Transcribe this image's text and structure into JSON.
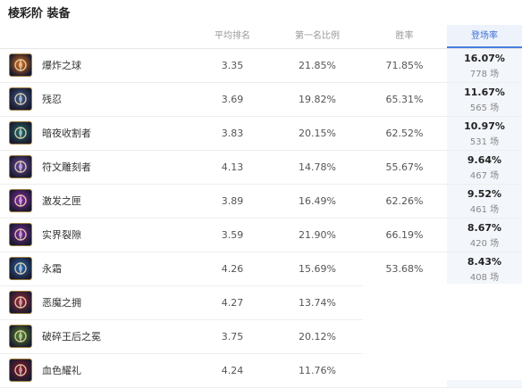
{
  "title": "棱彩阶 装备",
  "columns": {
    "avg_rank": "平均排名",
    "first_rate": "第一名比例",
    "win_rate": "胜率",
    "pick_rate": "登场率"
  },
  "rows": [
    {
      "name": "爆炸之球",
      "avg_rank": "3.35",
      "first_rate": "21.85%",
      "win_rate": "71.85%",
      "pick_rate": "16.07%",
      "count": "778 场",
      "icon": "explosive-orb-icon",
      "color": "#d9731c"
    },
    {
      "name": "残忍",
      "avg_rank": "3.69",
      "first_rate": "19.82%",
      "win_rate": "65.31%",
      "pick_rate": "11.67%",
      "count": "565 场",
      "icon": "cruelty-icon",
      "color": "#3c5a8a"
    },
    {
      "name": "暗夜收割者",
      "avg_rank": "3.83",
      "first_rate": "20.15%",
      "win_rate": "62.52%",
      "pick_rate": "10.97%",
      "count": "531 场",
      "icon": "night-harvester-icon",
      "color": "#1f6a6a"
    },
    {
      "name": "符文雕刻者",
      "avg_rank": "4.13",
      "first_rate": "14.78%",
      "win_rate": "55.67%",
      "pick_rate": "9.64%",
      "count": "467 场",
      "icon": "rune-carver-icon",
      "color": "#6c4aa0"
    },
    {
      "name": "激发之匣",
      "avg_rank": "3.89",
      "first_rate": "16.49%",
      "win_rate": "62.26%",
      "pick_rate": "9.52%",
      "count": "461 场",
      "icon": "catalyst-box-icon",
      "color": "#8a2aa8"
    },
    {
      "name": "实界裂隙",
      "avg_rank": "3.59",
      "first_rate": "21.90%",
      "win_rate": "66.19%",
      "pick_rate": "8.67%",
      "count": "420 场",
      "icon": "reality-rift-icon",
      "color": "#7a2a9a"
    },
    {
      "name": "永霜",
      "avg_rank": "4.26",
      "first_rate": "15.69%",
      "win_rate": "53.68%",
      "pick_rate": "8.43%",
      "count": "408 场",
      "icon": "eternal-frost-icon",
      "color": "#2a6ab0"
    },
    {
      "name": "恶魔之拥",
      "avg_rank": "4.27",
      "first_rate": "13.74%",
      "win_rate": "",
      "pick_rate": "",
      "count": "",
      "icon": "demonic-embrace-icon",
      "color": "#a02a3a"
    },
    {
      "name": "破碎王后之冕",
      "avg_rank": "3.75",
      "first_rate": "20.12%",
      "win_rate": "",
      "pick_rate": "",
      "count": "",
      "icon": "shattered-crown-icon",
      "color": "#5a8a2a"
    },
    {
      "name": "血色耀礼",
      "avg_rank": "4.24",
      "first_rate": "11.76%",
      "win_rate": "",
      "pick_rate": "",
      "count": "",
      "icon": "crimson-gift-icon",
      "color": "#8a1a2a"
    }
  ]
}
